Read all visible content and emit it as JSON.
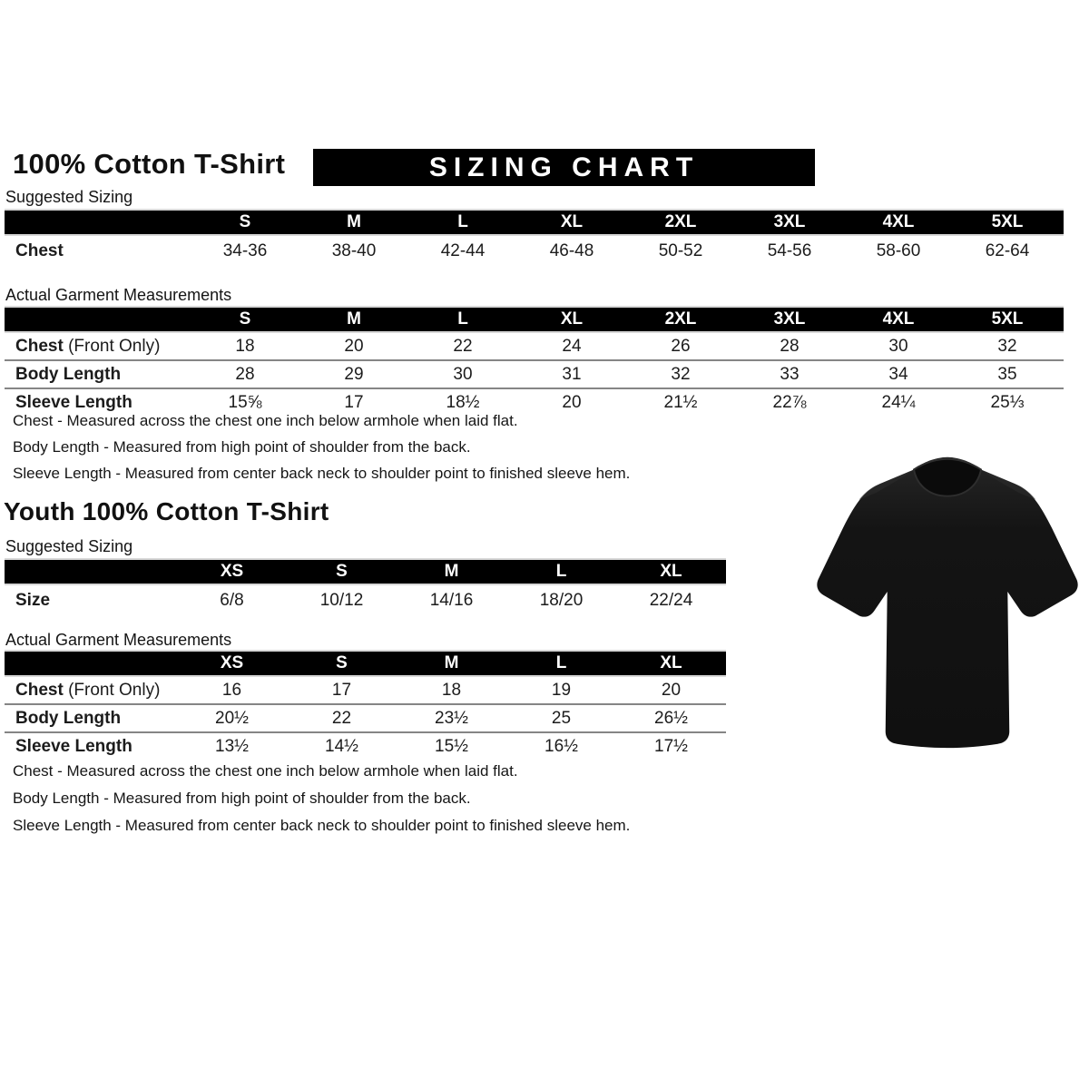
{
  "colors": {
    "banner_bg": "#000000",
    "banner_text": "#ffffff",
    "tshirt": "#141414"
  },
  "adult": {
    "title": "100% Cotton T-Shirt",
    "banner": "SIZING CHART",
    "suggested_label": "Suggested Sizing",
    "actual_label": "Actual Garment Measurements",
    "suggested": {
      "columns": [
        "S",
        "M",
        "L",
        "XL",
        "2XL",
        "3XL",
        "4XL",
        "5XL"
      ],
      "rows": [
        {
          "label": "Chest",
          "label_suffix": "",
          "values": [
            "34-36",
            "38-40",
            "42-44",
            "46-48",
            "50-52",
            "54-56",
            "58-60",
            "62-64"
          ]
        }
      ]
    },
    "actual": {
      "columns": [
        "S",
        "M",
        "L",
        "XL",
        "2XL",
        "3XL",
        "4XL",
        "5XL"
      ],
      "rows": [
        {
          "label": "Chest",
          "label_suffix": " (Front Only)",
          "values": [
            "18",
            "20",
            "22",
            "24",
            "26",
            "28",
            "30",
            "32"
          ]
        },
        {
          "label": "Body Length",
          "label_suffix": "",
          "values": [
            "28",
            "29",
            "30",
            "31",
            "32",
            "33",
            "34",
            "35"
          ]
        },
        {
          "label": "Sleeve Length",
          "label_suffix": "",
          "values": [
            "15⅝",
            "17",
            "18½",
            "20",
            "21½",
            "22⅞",
            "24¼",
            "25⅓"
          ]
        }
      ]
    },
    "notes": [
      "Chest - Measured across the chest one inch below armhole when laid flat.",
      "Body Length - Measured from high point of shoulder from the back.",
      "Sleeve Length - Measured from center back neck to shoulder point to finished sleeve hem."
    ]
  },
  "youth": {
    "title": "Youth 100% Cotton T-Shirt",
    "suggested_label": "Suggested Sizing",
    "actual_label": "Actual Garment Measurements",
    "suggested": {
      "columns": [
        "XS",
        "S",
        "M",
        "L",
        "XL"
      ],
      "rows": [
        {
          "label": "Size",
          "label_suffix": "",
          "values": [
            "6/8",
            "10/12",
            "14/16",
            "18/20",
            "22/24"
          ]
        }
      ]
    },
    "actual": {
      "columns": [
        "XS",
        "S",
        "M",
        "L",
        "XL"
      ],
      "rows": [
        {
          "label": "Chest",
          "label_suffix": " (Front Only)",
          "values": [
            "16",
            "17",
            "18",
            "19",
            "20"
          ]
        },
        {
          "label": "Body Length",
          "label_suffix": "",
          "values": [
            "20½",
            "22",
            "23½",
            "25",
            "26½"
          ]
        },
        {
          "label": "Sleeve Length",
          "label_suffix": "",
          "values": [
            "13½",
            "14½",
            "15½",
            "16½",
            "17½"
          ]
        }
      ]
    },
    "notes": [
      "Chest - Measured across the chest one inch below armhole when laid flat.",
      "Body Length - Measured from high point of shoulder from the back.",
      "Sleeve Length - Measured from center back neck to shoulder point to finished sleeve hem."
    ]
  }
}
